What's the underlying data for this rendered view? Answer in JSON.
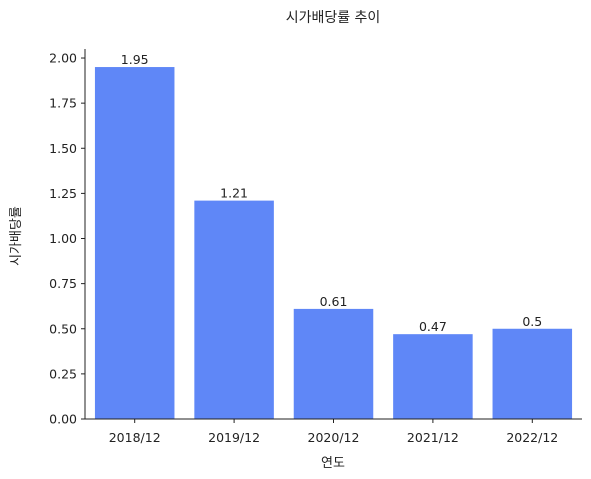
{
  "chart_data": {
    "type": "bar",
    "title": "시가배당률 추이",
    "xlabel": "연도",
    "ylabel": "시가배당률",
    "categories": [
      "2018/12",
      "2019/12",
      "2020/12",
      "2021/12",
      "2022/12"
    ],
    "values": [
      1.95,
      1.21,
      0.61,
      0.47,
      0.5
    ],
    "data_labels": [
      "1.95",
      "1.21",
      "0.61",
      "0.47",
      "0.5"
    ],
    "ylim": [
      0,
      2.05
    ],
    "yticks": [
      "0.00",
      "0.25",
      "0.50",
      "0.75",
      "1.00",
      "1.25",
      "1.50",
      "1.75",
      "2.00"
    ],
    "bar_color": "#5f87f7",
    "grid": false,
    "legend": "none"
  }
}
